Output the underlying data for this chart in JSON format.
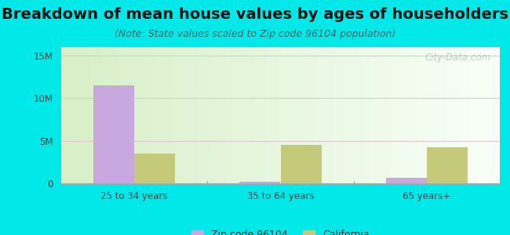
{
  "title": "Breakdown of mean house values by ages of householders",
  "subtitle": "(Note: State values scaled to Zip code 96104 population)",
  "categories": [
    "25 to 34 years",
    "35 to 64 years",
    "65 years+"
  ],
  "zip_values": [
    11500000,
    200000,
    600000
  ],
  "ca_values": [
    3500000,
    4500000,
    4200000
  ],
  "zip_color": "#c9a8e0",
  "ca_color": "#c5c97a",
  "background_color": "#00e8e8",
  "ylim": [
    0,
    16000000
  ],
  "yticks": [
    0,
    5000000,
    10000000,
    15000000
  ],
  "ytick_labels": [
    "0",
    "5M",
    "10M",
    "15M"
  ],
  "legend_labels": [
    "Zip code 96104",
    "California"
  ],
  "bar_width": 0.28,
  "title_fontsize": 14,
  "subtitle_fontsize": 9,
  "watermark": "City-Data.com"
}
